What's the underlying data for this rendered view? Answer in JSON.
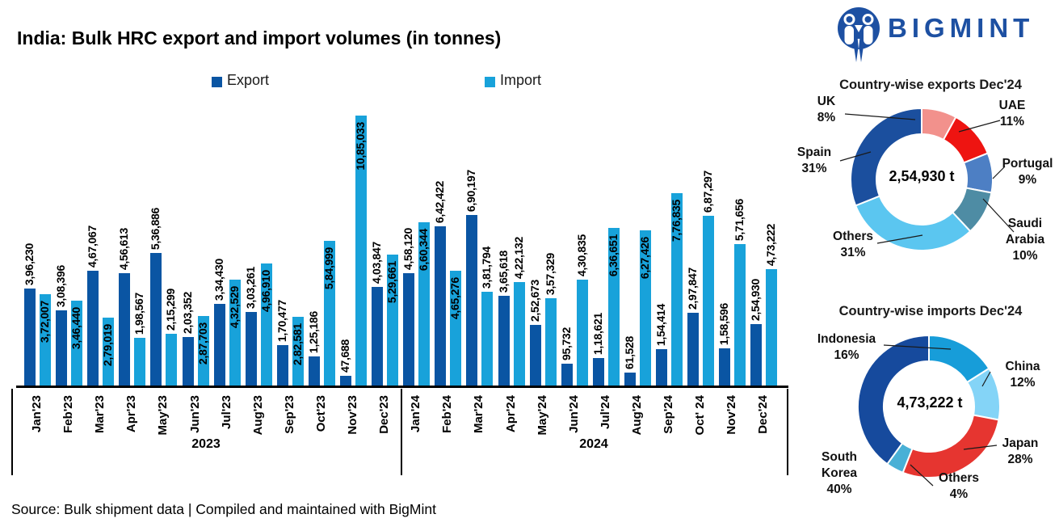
{
  "header": {
    "title": "India: Bulk HRC export and import volumes (in tonnes)"
  },
  "legend": {
    "items": [
      {
        "label": "Export",
        "color": "#0a55a3"
      },
      {
        "label": "Import",
        "color": "#18a2da"
      }
    ]
  },
  "chart_data": [
    {
      "type": "bar",
      "title": "India: Bulk HRC export and import volumes (in tonnes)",
      "unit": "tonnes",
      "xlabel": "",
      "ylabel": "",
      "ylim": [
        0,
        1085033
      ],
      "grid": false,
      "legend_position": "top",
      "categories": [
        "Jan'23",
        "Feb'23",
        "Mar'23",
        "Apr'23",
        "May'23",
        "Jun'23",
        "Jul'23",
        "Aug'23",
        "Sep'23",
        "Oct'23",
        "Nov'23",
        "Dec'23",
        "Jan'24",
        "Feb'24",
        "Mar'24",
        "Apr'24",
        "May'24",
        "Jun'24",
        "Jul'24",
        "Aug'24",
        "Sep'24",
        "Oct' 24",
        "Nov'24",
        "Dec'24"
      ],
      "year_groups": [
        {
          "label": "2023",
          "months": 12
        },
        {
          "label": "2024",
          "months": 12
        }
      ],
      "series": [
        {
          "name": "Export",
          "color": "#0a55a3",
          "values": [
            396230,
            308396,
            467067,
            456613,
            536886,
            203352,
            334430,
            303261,
            170477,
            125186,
            47688,
            403847,
            458120,
            642422,
            690197,
            365618,
            252673,
            95732,
            118621,
            61528,
            154414,
            297847,
            158596,
            254930
          ],
          "labels": [
            "3,96,230",
            "3,08,396",
            "4,67,067",
            "4,56,613",
            "5,36,886",
            "2,03,352",
            "3,34,430",
            "3,03,261",
            "1,70,477",
            "1,25,186",
            "47,688",
            "4,03,847",
            "4,58,120",
            "6,42,422",
            "6,90,197",
            "3,65,618",
            "2,52,673",
            "95,732",
            "1,18,621",
            "61,528",
            "1,54,414",
            "2,97,847",
            "1,58,596",
            "2,54,930"
          ]
        },
        {
          "name": "Import",
          "color": "#18a2da",
          "values": [
            372007,
            346440,
            279019,
            198567,
            215299,
            287703,
            432529,
            496910,
            282581,
            584999,
            1085033,
            529661,
            660344,
            465276,
            381794,
            422132,
            357329,
            430835,
            636651,
            627426,
            776835,
            687297,
            571656,
            473222
          ],
          "labels": [
            "3,72,007",
            "3,46,440",
            "2,79,019",
            "1,98,567",
            "2,15,299",
            "2,87,703",
            "4,32,529",
            "4,96,910",
            "2,82,581",
            "5,84,999",
            "10,85,033",
            "5,29,661",
            "6,60,344",
            "4,65,276",
            "3,81,794",
            "4,22,132",
            "3,57,329",
            "4,30,835",
            "6,36,651",
            "6,27,426",
            "7,76,835",
            "6,87,297",
            "5,71,656",
            "4,73,222"
          ]
        }
      ]
    },
    {
      "type": "pie",
      "title": "Country-wise exports Dec'24",
      "center_label": "2,54,930 t",
      "slices": [
        {
          "label": "UK",
          "pct": 8,
          "color": "#f2918c"
        },
        {
          "label": "UAE",
          "pct": 11,
          "color": "#ee1411"
        },
        {
          "label": "Portugal",
          "pct": 9,
          "color": "#4d7fc4"
        },
        {
          "label": "Saudi Arabia",
          "pct": 10,
          "color": "#4e8ca4"
        },
        {
          "label": "Others",
          "pct": 31,
          "color": "#5bc6f0"
        },
        {
          "label": "Spain",
          "pct": 31,
          "color": "#1b4f9e"
        }
      ]
    },
    {
      "type": "pie",
      "title": "Country-wise imports Dec'24",
      "center_label": "4,73,222 t",
      "slices": [
        {
          "label": "Indonesia",
          "pct": 16,
          "color": "#179dd9"
        },
        {
          "label": "China",
          "pct": 12,
          "color": "#84d4f7"
        },
        {
          "label": "Japan",
          "pct": 28,
          "color": "#e63530"
        },
        {
          "label": "Others",
          "pct": 4,
          "color": "#49b0d6"
        },
        {
          "label": "South Korea",
          "pct": 40,
          "color": "#164a9d"
        }
      ]
    }
  ],
  "source": {
    "text": "Source: Bulk shipment data | Compiled and maintained with BigMint"
  },
  "logo": {
    "brand": "BIGMINT",
    "color": "#1d50a2"
  }
}
